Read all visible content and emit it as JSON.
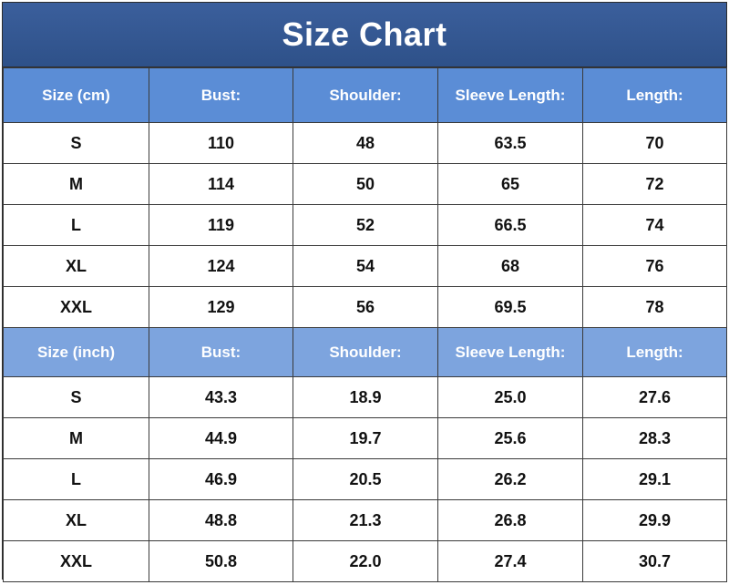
{
  "title": "Size Chart",
  "colors": {
    "title_bg": "#2e5189",
    "header_cm_bg": "#5b8dd6",
    "header_inch_bg": "#7da4de",
    "header_text": "#ffffff",
    "border": "#3a3a3a"
  },
  "cm_table": {
    "headers": [
      "Size (cm)",
      "Bust:",
      "Shoulder:",
      "Sleeve Length:",
      "Length:"
    ],
    "rows": [
      [
        "S",
        "110",
        "48",
        "63.5",
        "70"
      ],
      [
        "M",
        "114",
        "50",
        "65",
        "72"
      ],
      [
        "L",
        "119",
        "52",
        "66.5",
        "74"
      ],
      [
        "XL",
        "124",
        "54",
        "68",
        "76"
      ],
      [
        "XXL",
        "129",
        "56",
        "69.5",
        "78"
      ]
    ]
  },
  "inch_table": {
    "headers": [
      "Size (inch)",
      "Bust:",
      "Shoulder:",
      "Sleeve Length:",
      "Length:"
    ],
    "rows": [
      [
        "S",
        "43.3",
        "18.9",
        "25.0",
        "27.6"
      ],
      [
        "M",
        "44.9",
        "19.7",
        "25.6",
        "28.3"
      ],
      [
        "L",
        "46.9",
        "20.5",
        "26.2",
        "29.1"
      ],
      [
        "XL",
        "48.8",
        "21.3",
        "26.8",
        "29.9"
      ],
      [
        "XXL",
        "50.8",
        "22.0",
        "27.4",
        "30.7"
      ]
    ]
  }
}
